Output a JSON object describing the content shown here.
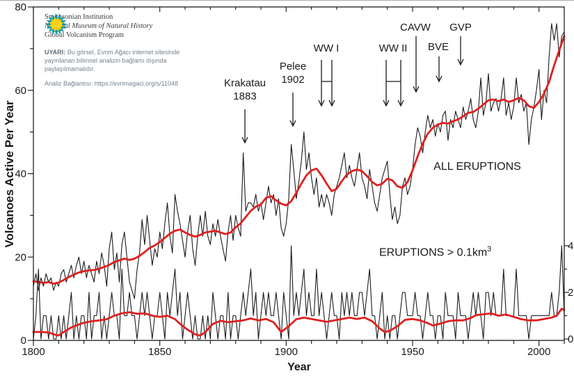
{
  "branding": {
    "org_line1": "Smithsonian Institution",
    "org_line2": "National Museum of Natural History",
    "org_line3": "Global Volcanism Program"
  },
  "warning": {
    "label": "UYARI:",
    "text": " Bu görsel, Evrim Ağacı internet sitesinde yayınlanan bilimsel analizin bağlamı dışında paylaşılmamalıdır.",
    "link_label": "Analiz Bağlantısı: ",
    "link": "https://evrimagaci.org/s/11048"
  },
  "annotations": {
    "krakatau_line1": "Krakatau",
    "krakatau_line2": "1883",
    "pelee_line1": "Pelee",
    "pelee_line2": "1902",
    "ww1": "WW I",
    "ww2": "WW II",
    "cavw": "CAVW",
    "bve": "BVE",
    "gvp": "GVP",
    "series_all": "ALL ERUPTIONS",
    "series_large_prefix": "ERUPTIONS > 0.1km",
    "series_large_sup": "3"
  },
  "axis_titles": {
    "y_left": "Volcanoes Active Per Year",
    "x": "Year"
  },
  "chart_data": {
    "type": "line",
    "xlabel": "Year",
    "ylabel_left": "Volcanoes Active Per Year",
    "x_range": [
      1800,
      2010
    ],
    "y_left_range": [
      0,
      80
    ],
    "y_right_range": [
      0,
      4.5
    ],
    "x_ticks": [
      1800,
      1850,
      1900,
      1950,
      2000
    ],
    "x_minor_step": 10,
    "y_left_ticks": [
      0,
      20,
      40,
      60,
      80
    ],
    "y_left_minor_ticks": [
      10,
      30,
      50,
      70
    ],
    "y_right_ticks": [
      0,
      2,
      4
    ],
    "y_right_minor_ticks": [
      1,
      3
    ],
    "grid": false,
    "colors": {
      "annual": "#1a1a1a",
      "smoothed": "#df1f1f"
    },
    "event_annotations": [
      {
        "label": "Krakatau 1883",
        "year": 1883
      },
      {
        "label": "Pelee 1902",
        "year": 1902
      },
      {
        "label": "WW I",
        "year_start": 1914,
        "year_end": 1918
      },
      {
        "label": "WW II",
        "year_start": 1939,
        "year_end": 1945
      },
      {
        "label": "CAVW",
        "year": 1951
      },
      {
        "label": "BVE",
        "year": 1960
      },
      {
        "label": "GVP",
        "year": 1968
      }
    ],
    "series": [
      {
        "name": "All eruptions (annual)",
        "axis": "left",
        "role": "annual",
        "start_year": 1800,
        "values": [
          13,
          16,
          12,
          15,
          13,
          16,
          14,
          15,
          12,
          14,
          13,
          16,
          17,
          14,
          16,
          18,
          15,
          18,
          20,
          16,
          19,
          15,
          18,
          16,
          14,
          19,
          16,
          21,
          18,
          13,
          22,
          26,
          17,
          21,
          14,
          23,
          26,
          20,
          14,
          12,
          10,
          17,
          21,
          29,
          23,
          30,
          24,
          18,
          22,
          20,
          26,
          22,
          28,
          33,
          25,
          21,
          35,
          31,
          28,
          24,
          20,
          26,
          30,
          22,
          18,
          25,
          30,
          25,
          31,
          25,
          23,
          28,
          25,
          29,
          25,
          22,
          19,
          26,
          30,
          24,
          30,
          27,
          25,
          45,
          31,
          33,
          33,
          32,
          35,
          31,
          33,
          29,
          33,
          37,
          33,
          35,
          30,
          34,
          27,
          25,
          28,
          34,
          47,
          41,
          34,
          38,
          43,
          50,
          41,
          45,
          39,
          35,
          39,
          32,
          35,
          32,
          35,
          33,
          30,
          35,
          37,
          39,
          42,
          45,
          39,
          42,
          39,
          37,
          41,
          45,
          39,
          37,
          34,
          41,
          37,
          33,
          31,
          35,
          39,
          41,
          43,
          35,
          29,
          32,
          28,
          30,
          37,
          39,
          35,
          37,
          41,
          47,
          51,
          49,
          45,
          50,
          54,
          51,
          53,
          49,
          52,
          50,
          54,
          55,
          48,
          53,
          51,
          55,
          53,
          51,
          56,
          53,
          55,
          58,
          53,
          51,
          55,
          63,
          54,
          57,
          64,
          55,
          57,
          58,
          55,
          58,
          63,
          54,
          57,
          53,
          56,
          63,
          57,
          59,
          55,
          57,
          47,
          53,
          56,
          60,
          65,
          53,
          60,
          57,
          68,
          76,
          72,
          76,
          68,
          73,
          74
        ]
      },
      {
        "name": "All eruptions (10-yr running mean)",
        "axis": "left",
        "role": "smoothed",
        "points": [
          [
            1800,
            14.2
          ],
          [
            1802,
            14.0
          ],
          [
            1804,
            13.8
          ],
          [
            1806,
            14.0
          ],
          [
            1808,
            13.6
          ],
          [
            1810,
            13.9
          ],
          [
            1812,
            14.5
          ],
          [
            1814,
            15.2
          ],
          [
            1816,
            15.8
          ],
          [
            1818,
            16.3
          ],
          [
            1820,
            16.6
          ],
          [
            1822,
            16.8
          ],
          [
            1824,
            16.9
          ],
          [
            1826,
            17.2
          ],
          [
            1828,
            17.6
          ],
          [
            1830,
            18.1
          ],
          [
            1832,
            18.8
          ],
          [
            1834,
            19.2
          ],
          [
            1836,
            19.6
          ],
          [
            1838,
            19.3
          ],
          [
            1840,
            19.6
          ],
          [
            1842,
            20.3
          ],
          [
            1844,
            21.2
          ],
          [
            1846,
            22.2
          ],
          [
            1848,
            22.8
          ],
          [
            1850,
            23.6
          ],
          [
            1852,
            24.6
          ],
          [
            1854,
            25.6
          ],
          [
            1856,
            26.3
          ],
          [
            1858,
            26.6
          ],
          [
            1860,
            25.9
          ],
          [
            1862,
            25.3
          ],
          [
            1864,
            24.9
          ],
          [
            1866,
            25.3
          ],
          [
            1868,
            25.9
          ],
          [
            1870,
            26.1
          ],
          [
            1872,
            26.3
          ],
          [
            1874,
            25.9
          ],
          [
            1876,
            25.5
          ],
          [
            1878,
            25.9
          ],
          [
            1880,
            27.1
          ],
          [
            1882,
            28.1
          ],
          [
            1884,
            29.6
          ],
          [
            1886,
            31.1
          ],
          [
            1888,
            32.1
          ],
          [
            1890,
            32.6
          ],
          [
            1892,
            34.2
          ],
          [
            1894,
            34.6
          ],
          [
            1896,
            33.6
          ],
          [
            1898,
            32.8
          ],
          [
            1900,
            32.4
          ],
          [
            1902,
            33.4
          ],
          [
            1904,
            35.4
          ],
          [
            1906,
            37.6
          ],
          [
            1908,
            39.6
          ],
          [
            1910,
            40.8
          ],
          [
            1912,
            41.2
          ],
          [
            1914,
            39.6
          ],
          [
            1916,
            37.6
          ],
          [
            1918,
            35.8
          ],
          [
            1920,
            36.4
          ],
          [
            1922,
            38.2
          ],
          [
            1924,
            39.8
          ],
          [
            1926,
            40.6
          ],
          [
            1928,
            41.0
          ],
          [
            1930,
            40.6
          ],
          [
            1932,
            39.4
          ],
          [
            1934,
            38.0
          ],
          [
            1936,
            37.2
          ],
          [
            1938,
            37.6
          ],
          [
            1940,
            38.8
          ],
          [
            1942,
            38.4
          ],
          [
            1944,
            37.0
          ],
          [
            1946,
            36.6
          ],
          [
            1948,
            38.0
          ],
          [
            1950,
            40.8
          ],
          [
            1952,
            44.2
          ],
          [
            1954,
            47.2
          ],
          [
            1956,
            49.6
          ],
          [
            1958,
            51.0
          ],
          [
            1960,
            51.8
          ],
          [
            1962,
            52.2
          ],
          [
            1964,
            52.0
          ],
          [
            1966,
            52.6
          ],
          [
            1968,
            53.0
          ],
          [
            1970,
            53.8
          ],
          [
            1972,
            54.6
          ],
          [
            1974,
            54.8
          ],
          [
            1976,
            55.6
          ],
          [
            1978,
            56.6
          ],
          [
            1980,
            57.6
          ],
          [
            1982,
            57.8
          ],
          [
            1984,
            57.4
          ],
          [
            1986,
            57.8
          ],
          [
            1988,
            57.2
          ],
          [
            1990,
            57.6
          ],
          [
            1992,
            58.2
          ],
          [
            1994,
            57.6
          ],
          [
            1996,
            56.2
          ],
          [
            1998,
            55.8
          ],
          [
            2000,
            57.2
          ],
          [
            2002,
            59.2
          ],
          [
            2004,
            62.0
          ],
          [
            2006,
            66.0
          ],
          [
            2008,
            69.6
          ],
          [
            2010,
            73.0
          ]
        ]
      },
      {
        "name": "Eruptions > 0.1 km3 (annual)",
        "axis": "right",
        "role": "annual",
        "start_year": 1800,
        "values": [
          0,
          1,
          3,
          0,
          1,
          1,
          0,
          1,
          0,
          0,
          1,
          0,
          1,
          0,
          1,
          2,
          0,
          1,
          0,
          1,
          1,
          0,
          2,
          0,
          1,
          1,
          2,
          0,
          1,
          0,
          1,
          2,
          1,
          1,
          0,
          3,
          1,
          1,
          2,
          1,
          1,
          0,
          1,
          2,
          1,
          2,
          1,
          0,
          1,
          1,
          2,
          1,
          0,
          2,
          1,
          2,
          3,
          1,
          2,
          0,
          1,
          2,
          1,
          0,
          1,
          0,
          0,
          1,
          0,
          1,
          0,
          2,
          1,
          0,
          1,
          1,
          0,
          2,
          0,
          1,
          1,
          0,
          1,
          2,
          1,
          2,
          3,
          1,
          2,
          0,
          1,
          2,
          1,
          2,
          1,
          1,
          2,
          1,
          0,
          2,
          1,
          0,
          4,
          1,
          2,
          1,
          2,
          3,
          1,
          2,
          1,
          1,
          3,
          1,
          2,
          1,
          0,
          1,
          2,
          1,
          1,
          0,
          2,
          1,
          2,
          1,
          2,
          1,
          1,
          2,
          2,
          1,
          2,
          3,
          1,
          1,
          0,
          1,
          2,
          0,
          1,
          0,
          1,
          1,
          0,
          1,
          2,
          2,
          1,
          1,
          1,
          2,
          1,
          1,
          0,
          1,
          2,
          1,
          1,
          0,
          1,
          1,
          0,
          2,
          1,
          1,
          1,
          0,
          2,
          1,
          1,
          1,
          0,
          1,
          2,
          1,
          2,
          1,
          0,
          2,
          2,
          1,
          2,
          1,
          1,
          1,
          3,
          1,
          1,
          1,
          1,
          3,
          1,
          1,
          1,
          1,
          0,
          1,
          1,
          1,
          1,
          1,
          1,
          1,
          1,
          2,
          1,
          1,
          2,
          4,
          1
        ]
      },
      {
        "name": "Eruptions > 0.1 km3 (10-yr running mean)",
        "axis": "right",
        "role": "smoothed",
        "points": [
          [
            1800,
            0.3
          ],
          [
            1803,
            0.3
          ],
          [
            1806,
            0.28
          ],
          [
            1808,
            0.2
          ],
          [
            1810,
            0.15
          ],
          [
            1812,
            0.3
          ],
          [
            1815,
            0.5
          ],
          [
            1818,
            0.62
          ],
          [
            1820,
            0.7
          ],
          [
            1823,
            0.76
          ],
          [
            1826,
            0.8
          ],
          [
            1829,
            0.85
          ],
          [
            1832,
            1.0
          ],
          [
            1835,
            1.1
          ],
          [
            1838,
            1.15
          ],
          [
            1841,
            1.08
          ],
          [
            1844,
            1.1
          ],
          [
            1847,
            1.0
          ],
          [
            1850,
            0.95
          ],
          [
            1853,
            1.0
          ],
          [
            1856,
            0.85
          ],
          [
            1858,
            0.65
          ],
          [
            1861,
            0.4
          ],
          [
            1864,
            0.2
          ],
          [
            1866,
            0.15
          ],
          [
            1868,
            0.3
          ],
          [
            1871,
            0.65
          ],
          [
            1874,
            0.78
          ],
          [
            1877,
            0.72
          ],
          [
            1880,
            0.76
          ],
          [
            1883,
            0.8
          ],
          [
            1886,
            0.88
          ],
          [
            1889,
            0.8
          ],
          [
            1892,
            0.86
          ],
          [
            1895,
            0.72
          ],
          [
            1898,
            0.3
          ],
          [
            1901,
            0.55
          ],
          [
            1904,
            0.85
          ],
          [
            1907,
            0.92
          ],
          [
            1910,
            0.86
          ],
          [
            1913,
            0.8
          ],
          [
            1916,
            0.74
          ],
          [
            1919,
            0.8
          ],
          [
            1922,
            0.86
          ],
          [
            1925,
            0.92
          ],
          [
            1928,
            0.86
          ],
          [
            1931,
            0.92
          ],
          [
            1934,
            0.76
          ],
          [
            1937,
            0.45
          ],
          [
            1939,
            0.3
          ],
          [
            1941,
            0.35
          ],
          [
            1944,
            0.55
          ],
          [
            1947,
            0.82
          ],
          [
            1950,
            0.86
          ],
          [
            1953,
            0.8
          ],
          [
            1956,
            0.68
          ],
          [
            1958,
            0.58
          ],
          [
            1961,
            0.66
          ],
          [
            1964,
            0.76
          ],
          [
            1967,
            0.8
          ],
          [
            1970,
            0.8
          ],
          [
            1973,
            0.9
          ],
          [
            1975,
            1.02
          ],
          [
            1978,
            1.06
          ],
          [
            1981,
            1.1
          ],
          [
            1984,
            1.0
          ],
          [
            1987,
            1.05
          ],
          [
            1990,
            0.95
          ],
          [
            1993,
            0.85
          ],
          [
            1996,
            0.8
          ],
          [
            1999,
            0.8
          ],
          [
            2002,
            0.86
          ],
          [
            2005,
            0.92
          ],
          [
            2007,
            1.0
          ],
          [
            2009,
            1.3
          ],
          [
            2010,
            1.25
          ]
        ]
      }
    ]
  }
}
